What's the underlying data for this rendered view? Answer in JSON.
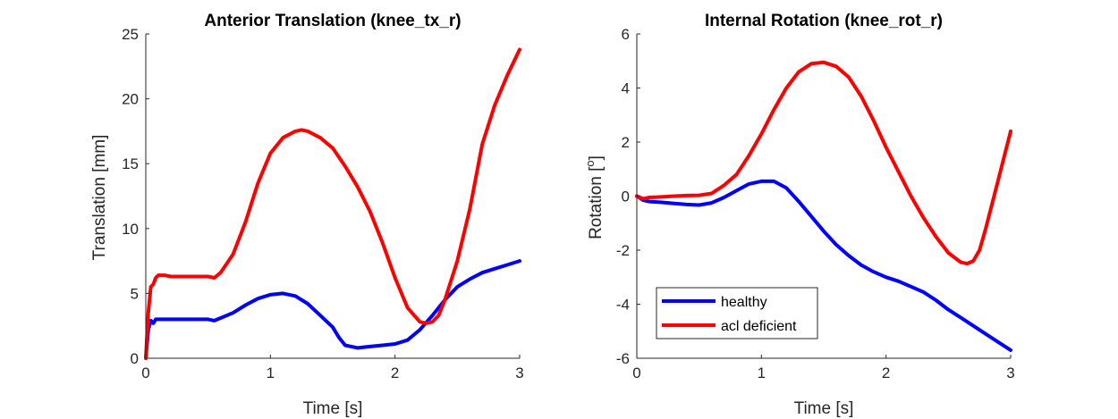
{
  "colors": {
    "healthy": "#0000ff",
    "acl": "#ff0000",
    "axis": "#262626"
  },
  "legend": {
    "items": [
      "healthy",
      "acl deficient"
    ],
    "placement": "lower-left (right panel)"
  },
  "chart_data": [
    {
      "type": "line",
      "title": "Anterior Translation (knee_tx_r)",
      "xlabel": "Time [s]",
      "ylabel": "Translation [mm]",
      "xlim": [
        0,
        3
      ],
      "ylim": [
        0,
        25
      ],
      "xticks": [
        0,
        1,
        2,
        3
      ],
      "yticks": [
        0,
        5,
        10,
        15,
        20,
        25
      ],
      "grid": false,
      "series": [
        {
          "name": "healthy",
          "x": [
            0,
            0.02,
            0.04,
            0.06,
            0.08,
            0.1,
            0.2,
            0.3,
            0.4,
            0.5,
            0.55,
            0.6,
            0.7,
            0.8,
            0.9,
            1.0,
            1.1,
            1.2,
            1.3,
            1.4,
            1.5,
            1.55,
            1.6,
            1.7,
            1.8,
            1.9,
            2.0,
            2.1,
            2.2,
            2.3,
            2.4,
            2.5,
            2.6,
            2.7,
            2.8,
            2.9,
            3.0
          ],
          "y": [
            0,
            2.2,
            2.9,
            2.7,
            3.0,
            3.0,
            3.0,
            3.0,
            3.0,
            3.0,
            2.9,
            3.1,
            3.5,
            4.1,
            4.6,
            4.9,
            5.0,
            4.8,
            4.2,
            3.3,
            2.4,
            1.6,
            1.0,
            0.8,
            0.9,
            1.0,
            1.1,
            1.4,
            2.2,
            3.3,
            4.5,
            5.5,
            6.1,
            6.6,
            6.9,
            7.2,
            7.5
          ]
        },
        {
          "name": "acl deficient",
          "x": [
            0,
            0.02,
            0.04,
            0.06,
            0.08,
            0.1,
            0.15,
            0.2,
            0.3,
            0.4,
            0.5,
            0.55,
            0.6,
            0.7,
            0.8,
            0.9,
            1.0,
            1.1,
            1.2,
            1.25,
            1.3,
            1.4,
            1.5,
            1.6,
            1.7,
            1.8,
            1.9,
            2.0,
            2.1,
            2.2,
            2.25,
            2.3,
            2.35,
            2.4,
            2.5,
            2.6,
            2.7,
            2.8,
            2.9,
            3.0
          ],
          "y": [
            0,
            3.5,
            5.5,
            5.7,
            6.2,
            6.4,
            6.4,
            6.3,
            6.3,
            6.3,
            6.3,
            6.2,
            6.6,
            8.0,
            10.5,
            13.5,
            15.8,
            17.0,
            17.5,
            17.6,
            17.5,
            17.0,
            16.2,
            14.8,
            13.2,
            11.3,
            8.9,
            6.2,
            3.9,
            2.8,
            2.7,
            2.8,
            3.3,
            4.5,
            7.5,
            11.5,
            16.5,
            19.5,
            21.8,
            23.8
          ]
        }
      ]
    },
    {
      "type": "line",
      "title": "Internal Rotation (knee_rot_r)",
      "xlabel": "Time [s]",
      "ylabel": "Rotation [°]",
      "ylabel_parts": [
        "Rotation [",
        "o",
        "]"
      ],
      "xlim": [
        0,
        3
      ],
      "ylim": [
        -6,
        6
      ],
      "xticks": [
        0,
        1,
        2,
        3
      ],
      "yticks": [
        -6,
        -4,
        -2,
        0,
        2,
        4,
        6
      ],
      "grid": false,
      "series": [
        {
          "name": "healthy",
          "x": [
            0,
            0.05,
            0.1,
            0.2,
            0.3,
            0.4,
            0.5,
            0.6,
            0.7,
            0.8,
            0.9,
            1.0,
            1.1,
            1.2,
            1.3,
            1.4,
            1.5,
            1.6,
            1.7,
            1.8,
            1.9,
            2.0,
            2.1,
            2.2,
            2.3,
            2.4,
            2.5,
            2.6,
            2.7,
            2.8,
            2.9,
            3.0
          ],
          "y": [
            0,
            -0.15,
            -0.2,
            -0.23,
            -0.27,
            -0.31,
            -0.33,
            -0.25,
            -0.05,
            0.2,
            0.45,
            0.55,
            0.55,
            0.3,
            -0.2,
            -0.75,
            -1.3,
            -1.8,
            -2.2,
            -2.55,
            -2.8,
            -3.0,
            -3.15,
            -3.35,
            -3.55,
            -3.85,
            -4.2,
            -4.5,
            -4.8,
            -5.1,
            -5.4,
            -5.7
          ]
        },
        {
          "name": "acl deficient",
          "x": [
            0,
            0.05,
            0.1,
            0.2,
            0.3,
            0.4,
            0.5,
            0.6,
            0.7,
            0.8,
            0.9,
            1.0,
            1.1,
            1.2,
            1.3,
            1.4,
            1.5,
            1.6,
            1.7,
            1.8,
            1.9,
            2.0,
            2.1,
            2.2,
            2.3,
            2.4,
            2.5,
            2.6,
            2.65,
            2.7,
            2.75,
            2.8,
            2.9,
            3.0
          ],
          "y": [
            0,
            -0.1,
            -0.05,
            -0.03,
            0,
            0.02,
            0.03,
            0.1,
            0.4,
            0.8,
            1.5,
            2.3,
            3.2,
            4.0,
            4.6,
            4.9,
            4.95,
            4.8,
            4.4,
            3.7,
            2.8,
            1.8,
            0.9,
            0.0,
            -0.8,
            -1.5,
            -2.1,
            -2.45,
            -2.5,
            -2.4,
            -2.0,
            -1.2,
            0.6,
            2.4
          ]
        }
      ]
    }
  ]
}
